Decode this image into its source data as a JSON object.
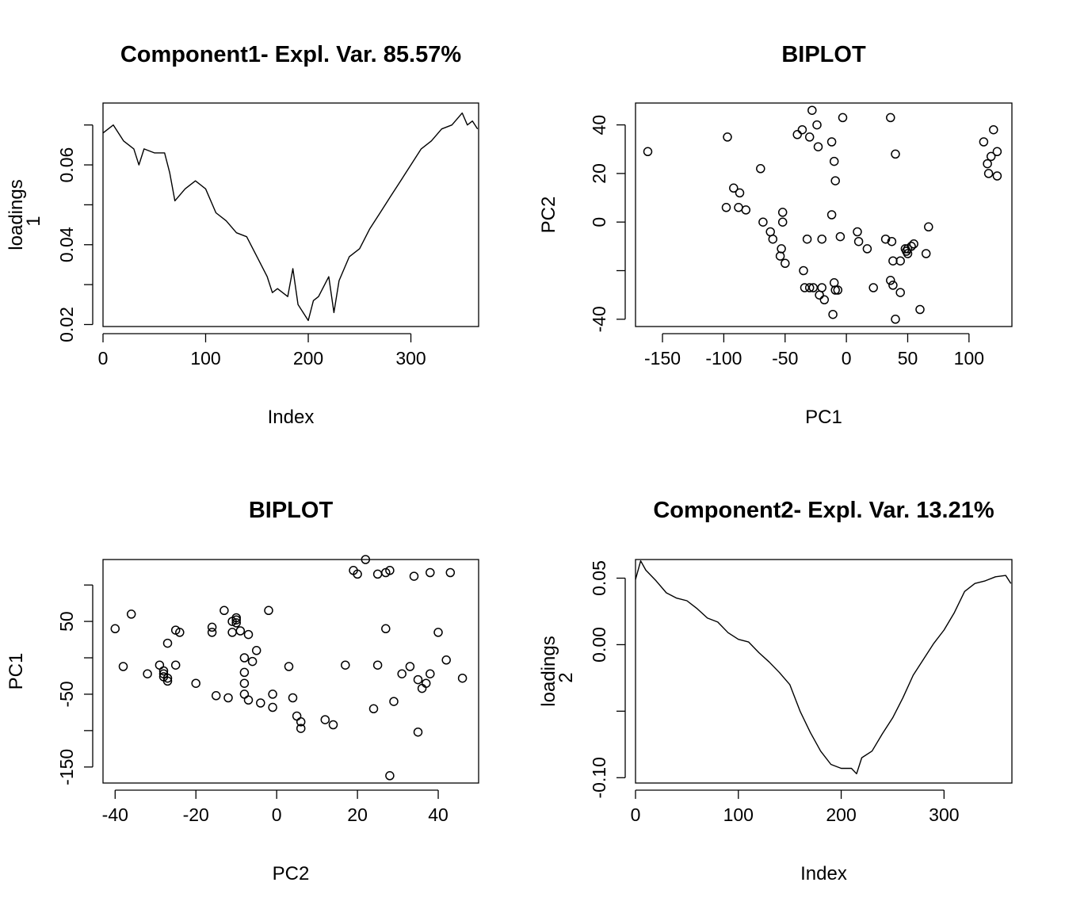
{
  "chart_data": [
    {
      "type": "line",
      "title": "Component1- Expl. Var. 85.57%",
      "xlabel": "Index",
      "ylabel": [
        "loadings",
        "1"
      ],
      "xlim": [
        0,
        366
      ],
      "ylim": [
        0.0195,
        0.0755
      ],
      "xticks": [
        0,
        100,
        200,
        300
      ],
      "yticks": [
        0.02,
        0.04,
        0.06
      ],
      "ytick_labels": [
        "0.02",
        "0.04",
        "0.06"
      ],
      "ytick_marks": [
        0.02,
        0.03,
        0.04,
        0.05,
        0.06,
        0.07
      ],
      "series": [
        {
          "x": [
            0,
            10,
            20,
            30,
            35,
            40,
            50,
            60,
            65,
            70,
            80,
            90,
            100,
            110,
            120,
            130,
            140,
            150,
            160,
            165,
            170,
            180,
            185,
            190,
            200,
            205,
            210,
            220,
            225,
            230,
            240,
            250,
            260,
            270,
            280,
            290,
            300,
            310,
            320,
            330,
            340,
            350,
            355,
            360,
            365
          ],
          "y": [
            0.068,
            0.07,
            0.066,
            0.064,
            0.06,
            0.064,
            0.063,
            0.063,
            0.058,
            0.051,
            0.054,
            0.056,
            0.054,
            0.048,
            0.046,
            0.043,
            0.042,
            0.037,
            0.032,
            0.028,
            0.029,
            0.027,
            0.034,
            0.025,
            0.021,
            0.026,
            0.027,
            0.032,
            0.023,
            0.031,
            0.037,
            0.039,
            0.044,
            0.048,
            0.052,
            0.056,
            0.06,
            0.064,
            0.066,
            0.069,
            0.07,
            0.073,
            0.07,
            0.071,
            0.069
          ]
        }
      ]
    },
    {
      "type": "scatter",
      "title": "BIPLOT",
      "xlabel": "PC1",
      "ylabel": "PC2",
      "xlim": [
        -172,
        135
      ],
      "ylim": [
        -43,
        49
      ],
      "xticks": [
        -150,
        -100,
        -50,
        0,
        50,
        100
      ],
      "yticks": [
        -40,
        0,
        20,
        40
      ],
      "ytick_marks": [
        -40,
        -20,
        0,
        20,
        40
      ],
      "series": [
        {
          "x": [
            -162,
            -97,
            -92,
            -87,
            -88,
            -98,
            -82,
            -70,
            -68,
            -62,
            -60,
            -53,
            -54,
            -50,
            -52,
            -52,
            -40,
            -36,
            -30,
            -28,
            -24,
            -23,
            -12,
            -10,
            -9,
            -3,
            36,
            40,
            -12,
            -32,
            -20,
            -5,
            9,
            10,
            17,
            32,
            37,
            38,
            44,
            48,
            49,
            50,
            50,
            53,
            55,
            65,
            67,
            -35,
            -34,
            -30,
            -27,
            -22,
            -20,
            -18,
            -10,
            -9,
            -7,
            -11,
            22,
            36,
            38,
            44,
            40,
            60,
            112,
            115,
            116,
            118,
            120,
            123,
            123
          ],
          "y": [
            29,
            35,
            14,
            12,
            6,
            6,
            5,
            22,
            0,
            -4,
            -7,
            -11,
            -14,
            -17,
            4,
            0,
            36,
            38,
            35,
            46,
            40,
            31,
            33,
            25,
            17,
            43,
            43,
            28,
            3,
            -7,
            -7,
            -6,
            -4,
            -8,
            -11,
            -7,
            -8,
            -16,
            -16,
            -11,
            -12,
            -13,
            -11,
            -10,
            -9,
            -13,
            -2,
            -20,
            -27,
            -27,
            -27,
            -30,
            -27,
            -32,
            -25,
            -28,
            -28,
            -38,
            -27,
            -24,
            -26,
            -29,
            -40,
            -36,
            33,
            24,
            20,
            27,
            38,
            29,
            19
          ]
        }
      ]
    },
    {
      "type": "scatter",
      "title": "BIPLOT",
      "xlabel": "PC2",
      "ylabel": "PC1",
      "xlim": [
        -43,
        50
      ],
      "ylim": [
        -172,
        135
      ],
      "xticks": [
        -40,
        -20,
        0,
        20,
        40
      ],
      "yticks": [
        -150,
        -50,
        50
      ],
      "ytick_marks": [
        -150,
        -100,
        -50,
        0,
        50,
        100
      ],
      "series": [
        {
          "x": [
            -40,
            -36,
            -38,
            -32,
            -29,
            -28,
            -28,
            -28,
            -27,
            -27,
            -27,
            -25,
            -25,
            -24,
            -20,
            -16,
            -16,
            -15,
            -13,
            -12,
            -11,
            -11,
            -10,
            -10,
            -10,
            -9,
            -8,
            -8,
            -8,
            -8,
            -7,
            -6,
            -7,
            -5,
            -4,
            -2,
            -1,
            -1,
            3,
            4,
            5,
            6,
            6,
            12,
            14,
            17,
            19,
            20,
            22,
            24,
            25,
            25,
            27,
            27,
            28,
            28,
            29,
            31,
            33,
            34,
            35,
            35,
            36,
            37,
            38,
            38,
            40,
            42,
            43,
            46
          ],
          "y": [
            40,
            60,
            -12,
            -22,
            -10,
            -22,
            -18,
            -26,
            -28,
            -32,
            20,
            38,
            -10,
            35,
            -35,
            42,
            35,
            -52,
            65,
            -55,
            35,
            50,
            48,
            52,
            55,
            37,
            0,
            -50,
            -20,
            -35,
            32,
            -5,
            -58,
            10,
            -62,
            65,
            -50,
            -68,
            -12,
            -55,
            -80,
            -97,
            -88,
            -85,
            -92,
            -10,
            120,
            115,
            135,
            -70,
            115,
            -10,
            117,
            40,
            120,
            -162,
            -60,
            -22,
            -12,
            112,
            -30,
            -102,
            -42,
            -35,
            117,
            -22,
            35,
            -3,
            117,
            -28
          ]
        }
      ]
    },
    {
      "type": "line",
      "title": "Component2- Expl. Var. 13.21%",
      "xlabel": "Index",
      "ylabel": [
        "loadings",
        "2"
      ],
      "xlim": [
        0,
        366
      ],
      "ylim": [
        -0.104,
        0.064
      ],
      "xticks": [
        0,
        100,
        200,
        300
      ],
      "yticks": [
        -0.1,
        0.0,
        0.05
      ],
      "ytick_labels": [
        "-0.10",
        "0.00",
        "0.05"
      ],
      "ytick_marks": [
        -0.1,
        -0.05,
        0.0,
        0.05
      ],
      "series": [
        {
          "x": [
            0,
            5,
            10,
            20,
            30,
            40,
            50,
            60,
            70,
            80,
            90,
            100,
            110,
            120,
            130,
            140,
            150,
            160,
            170,
            180,
            190,
            200,
            210,
            215,
            220,
            230,
            240,
            250,
            260,
            270,
            280,
            290,
            300,
            310,
            320,
            330,
            340,
            350,
            360,
            365
          ],
          "y": [
            0.049,
            0.063,
            0.056,
            0.048,
            0.039,
            0.035,
            0.033,
            0.027,
            0.02,
            0.017,
            0.009,
            0.004,
            0.002,
            -0.006,
            -0.013,
            -0.021,
            -0.03,
            -0.05,
            -0.066,
            -0.08,
            -0.09,
            -0.093,
            -0.093,
            -0.097,
            -0.085,
            -0.08,
            -0.067,
            -0.055,
            -0.04,
            -0.023,
            -0.011,
            0.001,
            0.011,
            0.024,
            0.04,
            0.046,
            0.048,
            0.051,
            0.052,
            0.046
          ]
        }
      ]
    }
  ]
}
